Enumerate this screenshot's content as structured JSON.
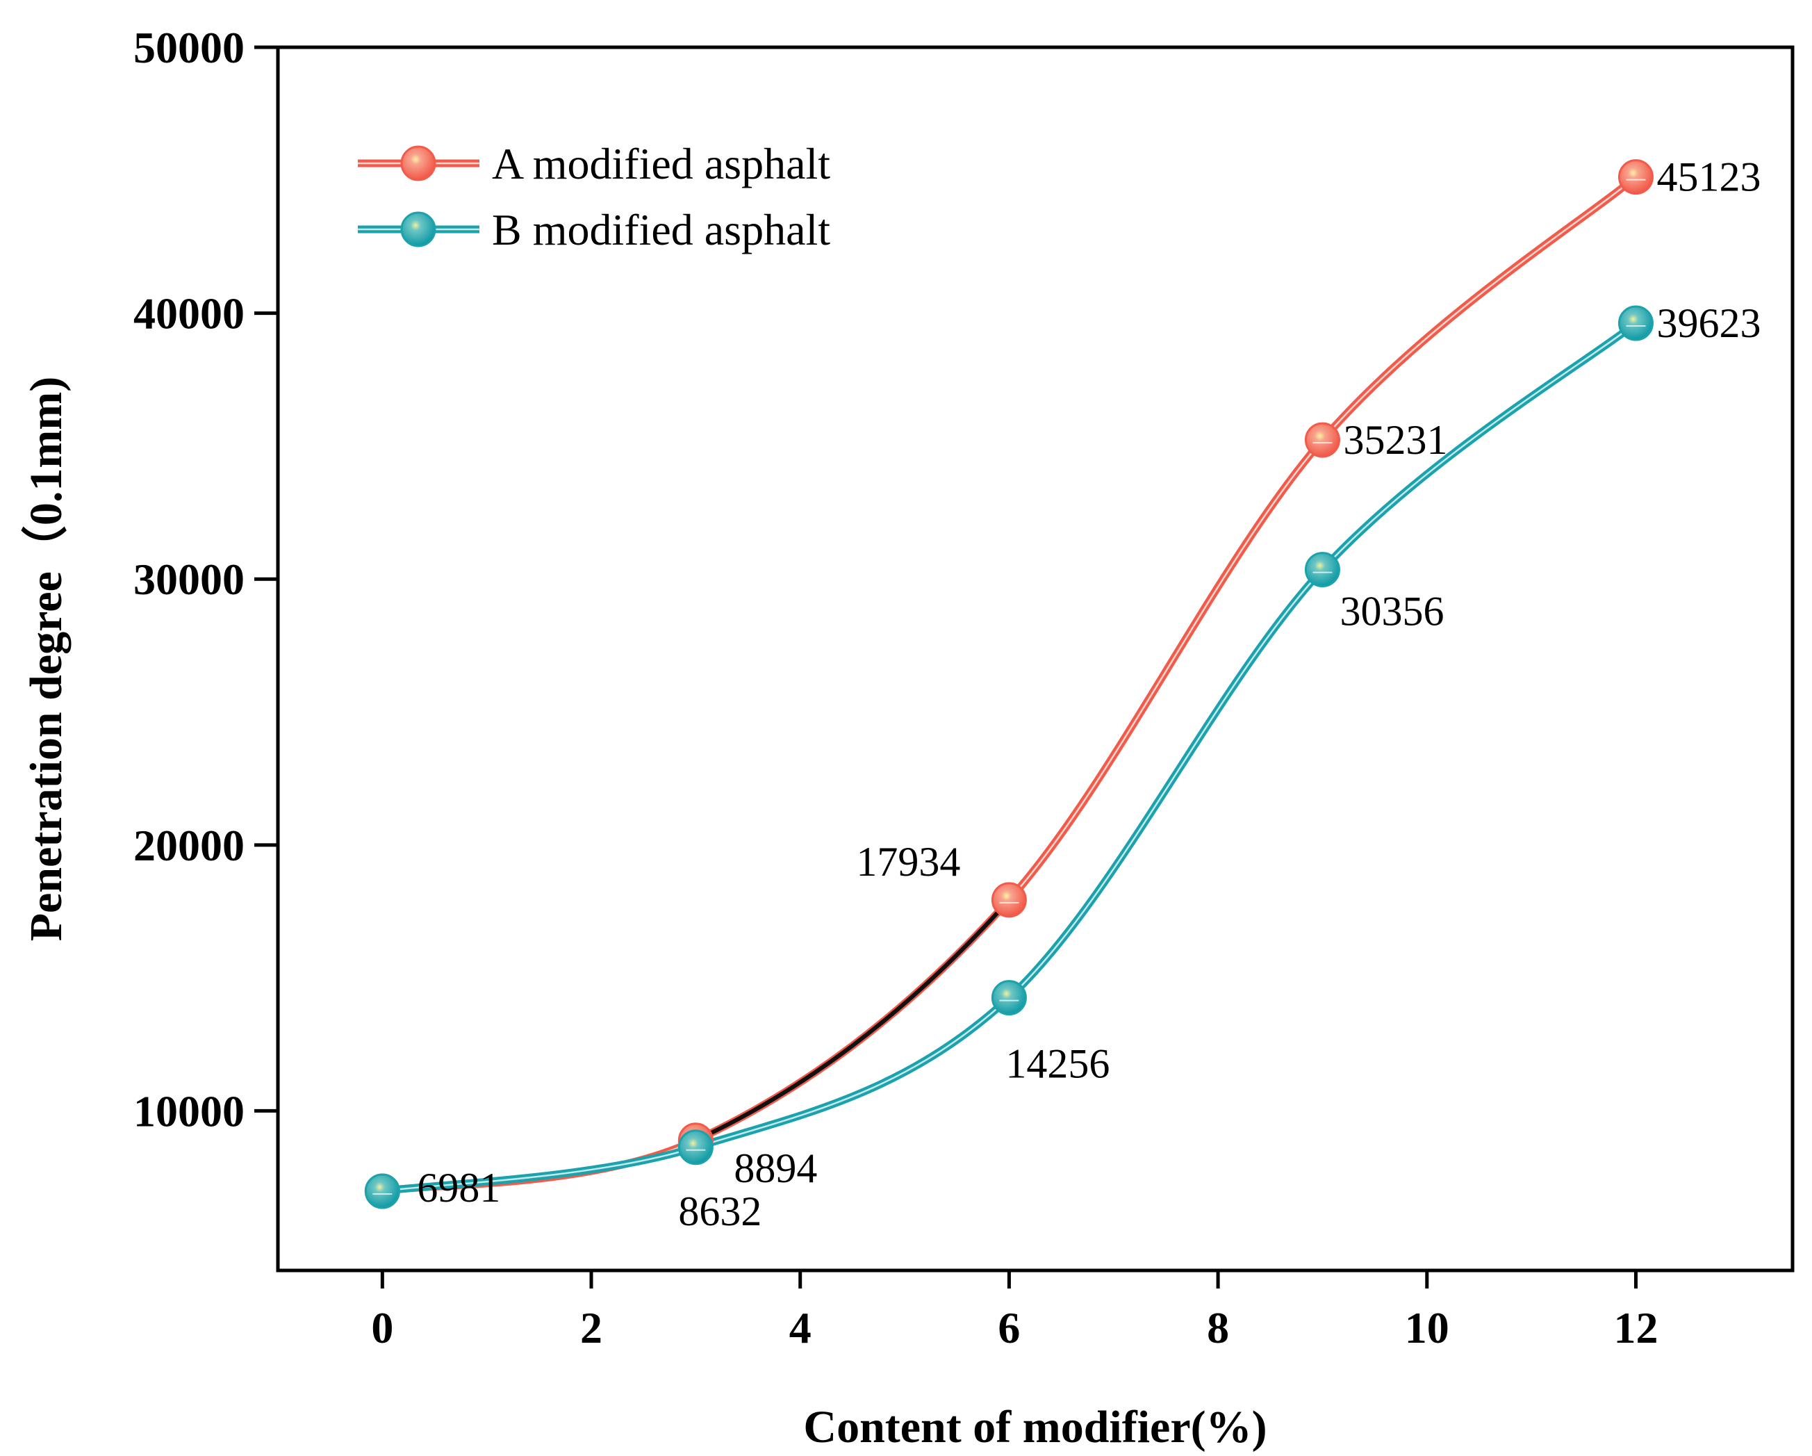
{
  "chart_data": {
    "type": "line",
    "title": "",
    "xlabel": "Content of modifier(%)",
    "ylabel": "Penetration degree（0.1mm)",
    "xlim": [
      -1,
      13.5
    ],
    "ylim": [
      4000,
      50000
    ],
    "xticks": [
      0,
      2,
      4,
      6,
      8,
      10,
      12
    ],
    "yticks": [
      10000,
      20000,
      30000,
      40000,
      50000
    ],
    "legend_position": "top-left",
    "series": [
      {
        "name": "A modified asphalt",
        "color": "#f25a4a",
        "x": [
          0,
          3,
          6,
          9,
          12
        ],
        "values": [
          6981,
          8894,
          17934,
          35231,
          45123
        ],
        "labels": [
          "",
          "8894",
          "17934",
          "35231",
          "45123"
        ]
      },
      {
        "name": "B modified asphalt",
        "color": "#1aa3ac",
        "x": [
          0,
          3,
          6,
          9,
          12
        ],
        "values": [
          6981,
          8632,
          14256,
          30356,
          39623
        ],
        "labels": [
          "6981",
          "8632",
          "14256",
          "30356",
          "39623"
        ]
      }
    ]
  }
}
